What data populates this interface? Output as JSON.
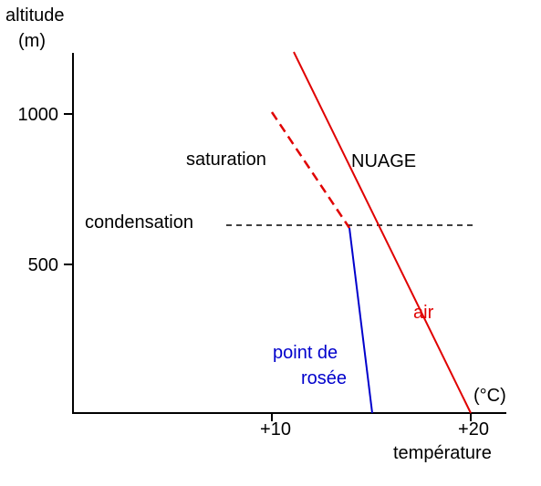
{
  "axes": {
    "y_label_line1": "altitude",
    "y_label_line2": "(m)",
    "y_tick_1000": "1000",
    "y_tick_500": "500",
    "x_tick_10": "+10",
    "x_tick_20": "+20",
    "x_unit": "(°C)",
    "x_label": "température"
  },
  "annotations": {
    "saturation": "saturation",
    "nuage": "NUAGE",
    "condensation": "condensation",
    "air": "air",
    "dew_point_line1": "point de",
    "dew_point_line2": "rosée"
  },
  "colors": {
    "axis": "#000000",
    "air": "#e00000",
    "dew_point": "#0000cc",
    "text": "#000000"
  }
}
